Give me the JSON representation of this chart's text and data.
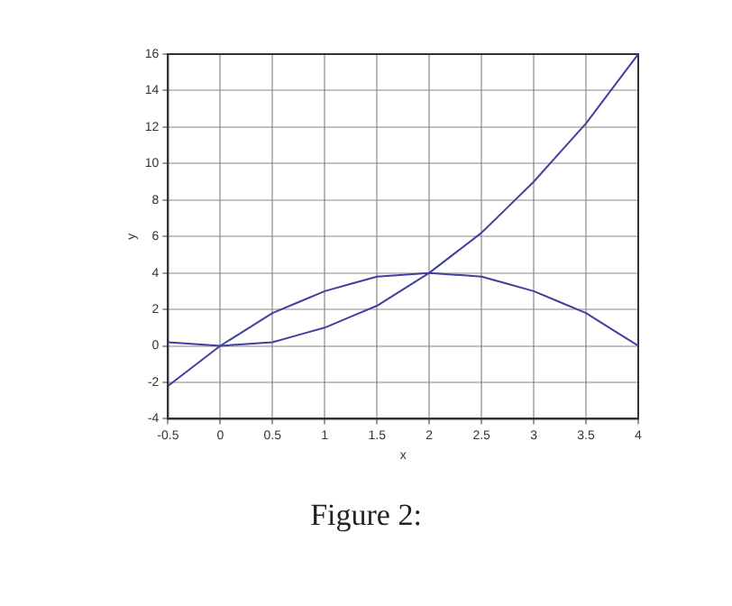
{
  "chart_data": {
    "type": "line",
    "xlabel": "x",
    "ylabel": "y",
    "x": [
      -0.5,
      -0.25,
      0,
      0.25,
      0.5,
      0.75,
      1,
      1.25,
      1.5,
      1.75,
      2,
      2.25,
      2.5,
      2.75,
      3,
      3.25,
      3.5,
      3.75,
      4
    ],
    "series": [
      {
        "color": "#4040a0",
        "values": [
          0.2,
          0.1,
          0,
          0.1,
          0.2,
          0.6,
          1,
          1.6,
          2.2,
          3.1,
          4,
          5.1,
          6.2,
          7.6,
          9,
          10.6,
          12.2,
          14.1,
          16
        ]
      },
      {
        "color": "#4040a0",
        "values": [
          -2.2,
          -1.1,
          0,
          0.9,
          1.8,
          2.4,
          3,
          3.4,
          3.8,
          3.9,
          4,
          3.9,
          3.8,
          3.4,
          3,
          2.4,
          1.8,
          0.9,
          0
        ]
      }
    ],
    "xlim": [
      -0.5,
      4
    ],
    "xticks": [
      -0.5,
      0,
      0.5,
      1,
      1.5,
      2,
      2.5,
      3,
      3.5,
      4
    ],
    "ylim": [
      -4,
      16
    ],
    "yticks": [
      -4,
      -2,
      0,
      2,
      4,
      6,
      8,
      10,
      12,
      14,
      16
    ],
    "grid": true,
    "legend": false,
    "marker": "none",
    "line_style": "solid",
    "annotations": [
      "Figure 2:"
    ]
  }
}
